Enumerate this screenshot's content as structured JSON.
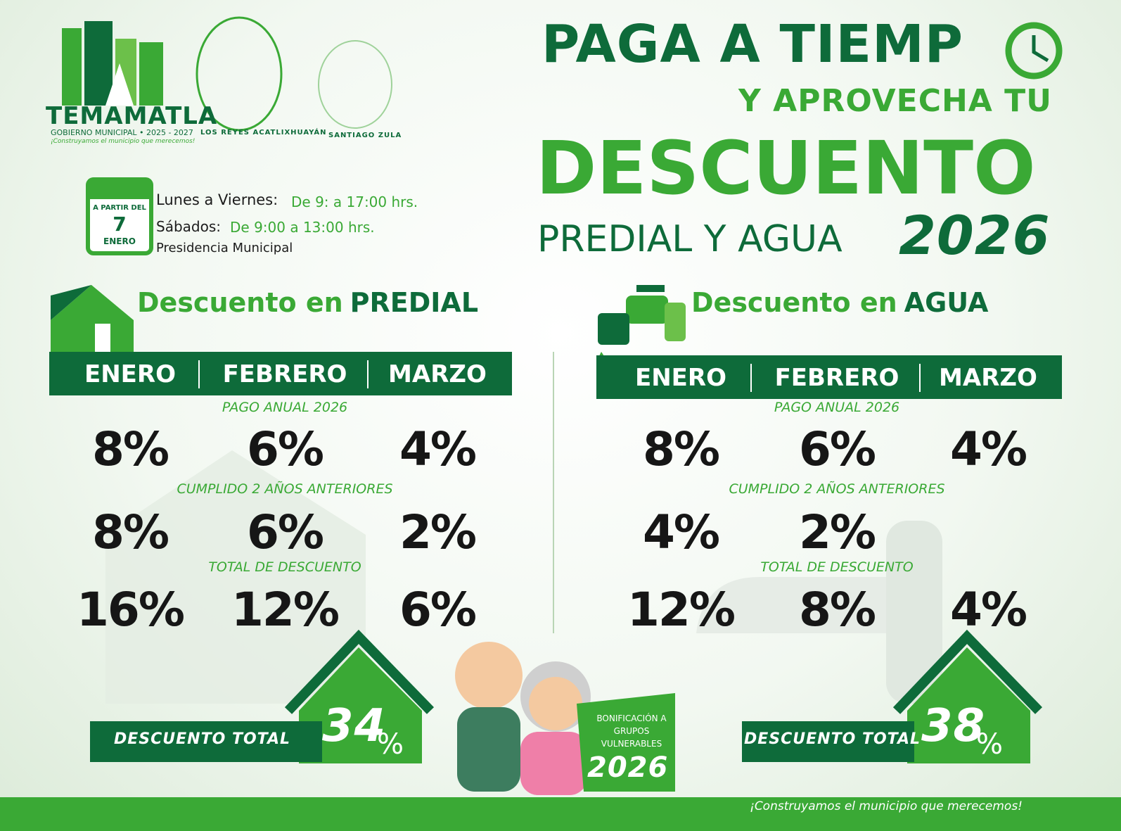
{
  "logos": {
    "temamatla": {
      "name": "TEMAMATLA",
      "subtitle": "GOBIERNO MUNICIPAL • 2025 - 2027",
      "slogan": "¡Construyamos el municipio que merecemos!"
    },
    "los_reyes": "LOS REYES ACATLIXHUAYÁN",
    "santiago": "SANTIAGO ZULA"
  },
  "headline": {
    "line1": "PAGA A TIEMP",
    "line2": "Y APROVECHA TU",
    "line3": "DESCUENTO",
    "line4": "PREDIAL Y AGUA",
    "year": "2026"
  },
  "schedule": {
    "calendar": [
      "A PARTIR DEL",
      "7",
      "ENERO"
    ],
    "rows": [
      {
        "label": "Lunes a Viernes:",
        "hours": "De 9: a 17:00 hrs."
      },
      {
        "label": "Sábados:",
        "hours": "De 9:00 a 13:00 hrs."
      }
    ],
    "place": "Presidencia Municipal"
  },
  "sections": [
    {
      "title_prefix": "Descuento en ",
      "title_bold": "PREDIAL",
      "months": [
        "ENERO",
        "FEBRERO",
        "MARZO"
      ],
      "groups": [
        {
          "label": "PAGO ANUAL 2026",
          "values": [
            "8%",
            "6%",
            "4%"
          ]
        },
        {
          "label": "CUMPLIDO 2 AÑOS ANTERIORES",
          "values": [
            "8%",
            "6%",
            "2%"
          ]
        },
        {
          "label": "TOTAL DE DESCUENTO",
          "values": [
            "16%",
            "12%",
            "6%"
          ]
        }
      ],
      "total_label": "DESCUENTO TOTAL",
      "total_value": "34",
      "total_unit": "%"
    },
    {
      "title_prefix": "Descuento en ",
      "title_bold": "AGUA",
      "months": [
        "ENERO",
        "FEBRERO",
        "MARZO"
      ],
      "groups": [
        {
          "label": "PAGO ANUAL 2026",
          "values": [
            "8%",
            "6%",
            "4%"
          ]
        },
        {
          "label": "CUMPLIDO 2 AÑOS ANTERIORES",
          "values": [
            "4%",
            "2%"
          ]
        },
        {
          "label": "TOTAL DE DESCUENTO",
          "values": [
            "12%",
            "8%",
            "4%"
          ]
        }
      ],
      "total_label": "DESCUENTO TOTAL",
      "total_value": "38",
      "total_unit": "%"
    }
  ],
  "bonus": {
    "text": "BONIFICACIÓN A GRUPOS VULNERABLES",
    "year": "2026"
  },
  "footer": "¡Construyamos el municipio que merecemos!"
}
